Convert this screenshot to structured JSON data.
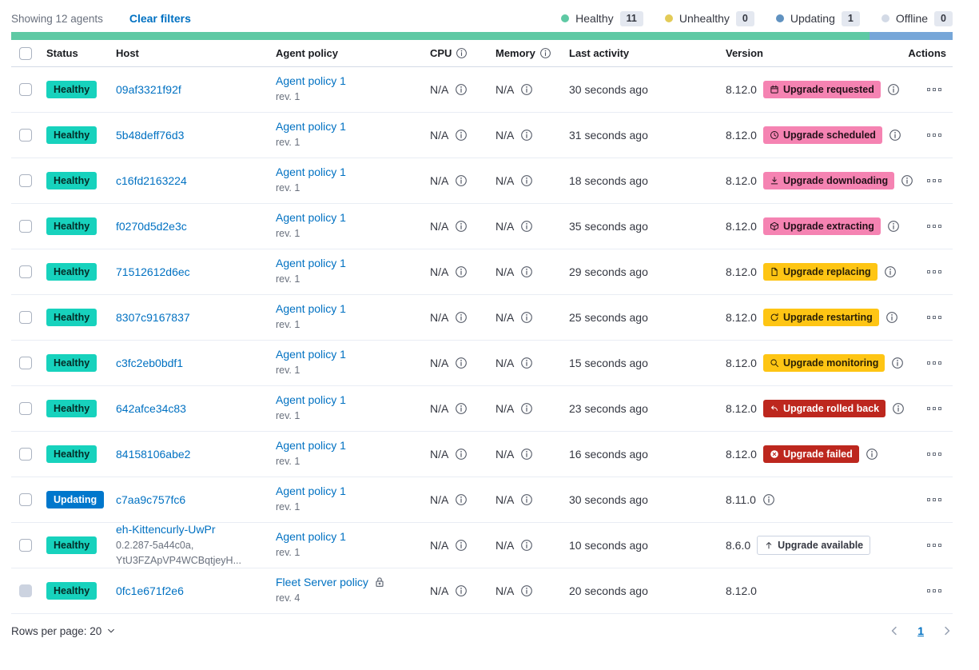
{
  "topbar": {
    "showing_text": "Showing 12 agents",
    "clear_filters_label": "Clear filters",
    "legend": [
      {
        "label": "Healthy",
        "count": "11",
        "dot_color": "#5ec9a4"
      },
      {
        "label": "Unhealthy",
        "count": "0",
        "dot_color": "#e3cb57"
      },
      {
        "label": "Updating",
        "count": "1",
        "dot_color": "#6092c0"
      },
      {
        "label": "Offline",
        "count": "0",
        "dot_color": "#d3dae6"
      }
    ],
    "health_bar": [
      {
        "status": "healthy",
        "color": "#5ec9a4",
        "percent": 91.2
      },
      {
        "status": "updating",
        "color": "#76a6d8",
        "percent": 8.8
      }
    ]
  },
  "table": {
    "headers": {
      "status": "Status",
      "host": "Host",
      "policy": "Agent policy",
      "cpu": "CPU",
      "memory": "Memory",
      "last_activity": "Last activity",
      "version": "Version",
      "actions": "Actions"
    }
  },
  "rows": [
    {
      "status": "Healthy",
      "status_type": "healthy",
      "host": "09af3321f92f",
      "host_sub_lines": null,
      "policy": "Agent policy 1",
      "policy_rev": "rev. 1",
      "policy_locked": false,
      "cpu": "N/A",
      "memory": "N/A",
      "last_activity": "30 seconds ago",
      "version": "8.12.0",
      "upgrade": {
        "label": "Upgrade requested",
        "style": "pink",
        "icon": "calendar-icon"
      },
      "version_info": true,
      "checkbox_disabled": false
    },
    {
      "status": "Healthy",
      "status_type": "healthy",
      "host": "5b48deff76d3",
      "host_sub_lines": null,
      "policy": "Agent policy 1",
      "policy_rev": "rev. 1",
      "policy_locked": false,
      "cpu": "N/A",
      "memory": "N/A",
      "last_activity": "31 seconds ago",
      "version": "8.12.0",
      "upgrade": {
        "label": "Upgrade scheduled",
        "style": "pink",
        "icon": "clock-icon"
      },
      "version_info": true,
      "checkbox_disabled": false
    },
    {
      "status": "Healthy",
      "status_type": "healthy",
      "host": "c16fd2163224",
      "host_sub_lines": null,
      "policy": "Agent policy 1",
      "policy_rev": "rev. 1",
      "policy_locked": false,
      "cpu": "N/A",
      "memory": "N/A",
      "last_activity": "18 seconds ago",
      "version": "8.12.0",
      "upgrade": {
        "label": "Upgrade downloading",
        "style": "pink",
        "icon": "download-icon"
      },
      "version_info": true,
      "checkbox_disabled": false
    },
    {
      "status": "Healthy",
      "status_type": "healthy",
      "host": "f0270d5d2e3c",
      "host_sub_lines": null,
      "policy": "Agent policy 1",
      "policy_rev": "rev. 1",
      "policy_locked": false,
      "cpu": "N/A",
      "memory": "N/A",
      "last_activity": "35 seconds ago",
      "version": "8.12.0",
      "upgrade": {
        "label": "Upgrade extracting",
        "style": "pink",
        "icon": "package-icon"
      },
      "version_info": true,
      "checkbox_disabled": false
    },
    {
      "status": "Healthy",
      "status_type": "healthy",
      "host": "71512612d6ec",
      "host_sub_lines": null,
      "policy": "Agent policy 1",
      "policy_rev": "rev. 1",
      "policy_locked": false,
      "cpu": "N/A",
      "memory": "N/A",
      "last_activity": "29 seconds ago",
      "version": "8.12.0",
      "upgrade": {
        "label": "Upgrade replacing",
        "style": "yellow",
        "icon": "document-icon"
      },
      "version_info": true,
      "checkbox_disabled": false
    },
    {
      "status": "Healthy",
      "status_type": "healthy",
      "host": "8307c9167837",
      "host_sub_lines": null,
      "policy": "Agent policy 1",
      "policy_rev": "rev. 1",
      "policy_locked": false,
      "cpu": "N/A",
      "memory": "N/A",
      "last_activity": "25 seconds ago",
      "version": "8.12.0",
      "upgrade": {
        "label": "Upgrade restarting",
        "style": "yellow",
        "icon": "refresh-icon"
      },
      "version_info": true,
      "checkbox_disabled": false
    },
    {
      "status": "Healthy",
      "status_type": "healthy",
      "host": "c3fc2eb0bdf1",
      "host_sub_lines": null,
      "policy": "Agent policy 1",
      "policy_rev": "rev. 1",
      "policy_locked": false,
      "cpu": "N/A",
      "memory": "N/A",
      "last_activity": "15 seconds ago",
      "version": "8.12.0",
      "upgrade": {
        "label": "Upgrade monitoring",
        "style": "yellow",
        "icon": "inspect-icon"
      },
      "version_info": true,
      "checkbox_disabled": false
    },
    {
      "status": "Healthy",
      "status_type": "healthy",
      "host": "642afce34c83",
      "host_sub_lines": null,
      "policy": "Agent policy 1",
      "policy_rev": "rev. 1",
      "policy_locked": false,
      "cpu": "N/A",
      "memory": "N/A",
      "last_activity": "23 seconds ago",
      "version": "8.12.0",
      "upgrade": {
        "label": "Upgrade rolled back",
        "style": "red",
        "icon": "return-icon"
      },
      "version_info": true,
      "checkbox_disabled": false
    },
    {
      "status": "Healthy",
      "status_type": "healthy",
      "host": "84158106abe2",
      "host_sub_lines": null,
      "policy": "Agent policy 1",
      "policy_rev": "rev. 1",
      "policy_locked": false,
      "cpu": "N/A",
      "memory": "N/A",
      "last_activity": "16 seconds ago",
      "version": "8.12.0",
      "upgrade": {
        "label": "Upgrade failed",
        "style": "red",
        "icon": "error-icon"
      },
      "version_info": true,
      "checkbox_disabled": false
    },
    {
      "status": "Updating",
      "status_type": "updating",
      "host": "c7aa9c757fc6",
      "host_sub_lines": null,
      "policy": "Agent policy 1",
      "policy_rev": "rev. 1",
      "policy_locked": false,
      "cpu": "N/A",
      "memory": "N/A",
      "last_activity": "30 seconds ago",
      "version": "8.11.0",
      "upgrade": null,
      "version_info": true,
      "checkbox_disabled": false
    },
    {
      "status": "Healthy",
      "status_type": "healthy",
      "host": "eh-Kittencurly-UwPr",
      "host_sub_lines": [
        "0.2.287-5a44c0a,",
        "YtU3FZApVP4WCBqtjeyH..."
      ],
      "policy": "Agent policy 1",
      "policy_rev": "rev. 1",
      "policy_locked": false,
      "cpu": "N/A",
      "memory": "N/A",
      "last_activity": "10 seconds ago",
      "version": "8.6.0",
      "upgrade": {
        "label": "Upgrade available",
        "style": "hollow",
        "icon": "arrow-up-icon"
      },
      "version_info": false,
      "checkbox_disabled": false
    },
    {
      "status": "Healthy",
      "status_type": "healthy",
      "host": "0fc1e671f2e6",
      "host_sub_lines": null,
      "policy": "Fleet Server policy",
      "policy_rev": "rev. 4",
      "policy_locked": true,
      "cpu": "N/A",
      "memory": "N/A",
      "last_activity": "20 seconds ago",
      "version": "8.12.0",
      "upgrade": null,
      "version_info": false,
      "checkbox_disabled": true
    }
  ],
  "footer": {
    "rows_per_page_label": "Rows per page: 20",
    "page": "1"
  },
  "colors": {
    "link": "#0071c2",
    "healthy_badge": "#17d2bd",
    "updating_badge": "#0077cc",
    "upgrade_pink": "#f583b2",
    "upgrade_yellow": "#fec514",
    "upgrade_red": "#bd271e",
    "health_bar_green": "#5ec9a4",
    "health_bar_blue": "#76a6d8"
  }
}
